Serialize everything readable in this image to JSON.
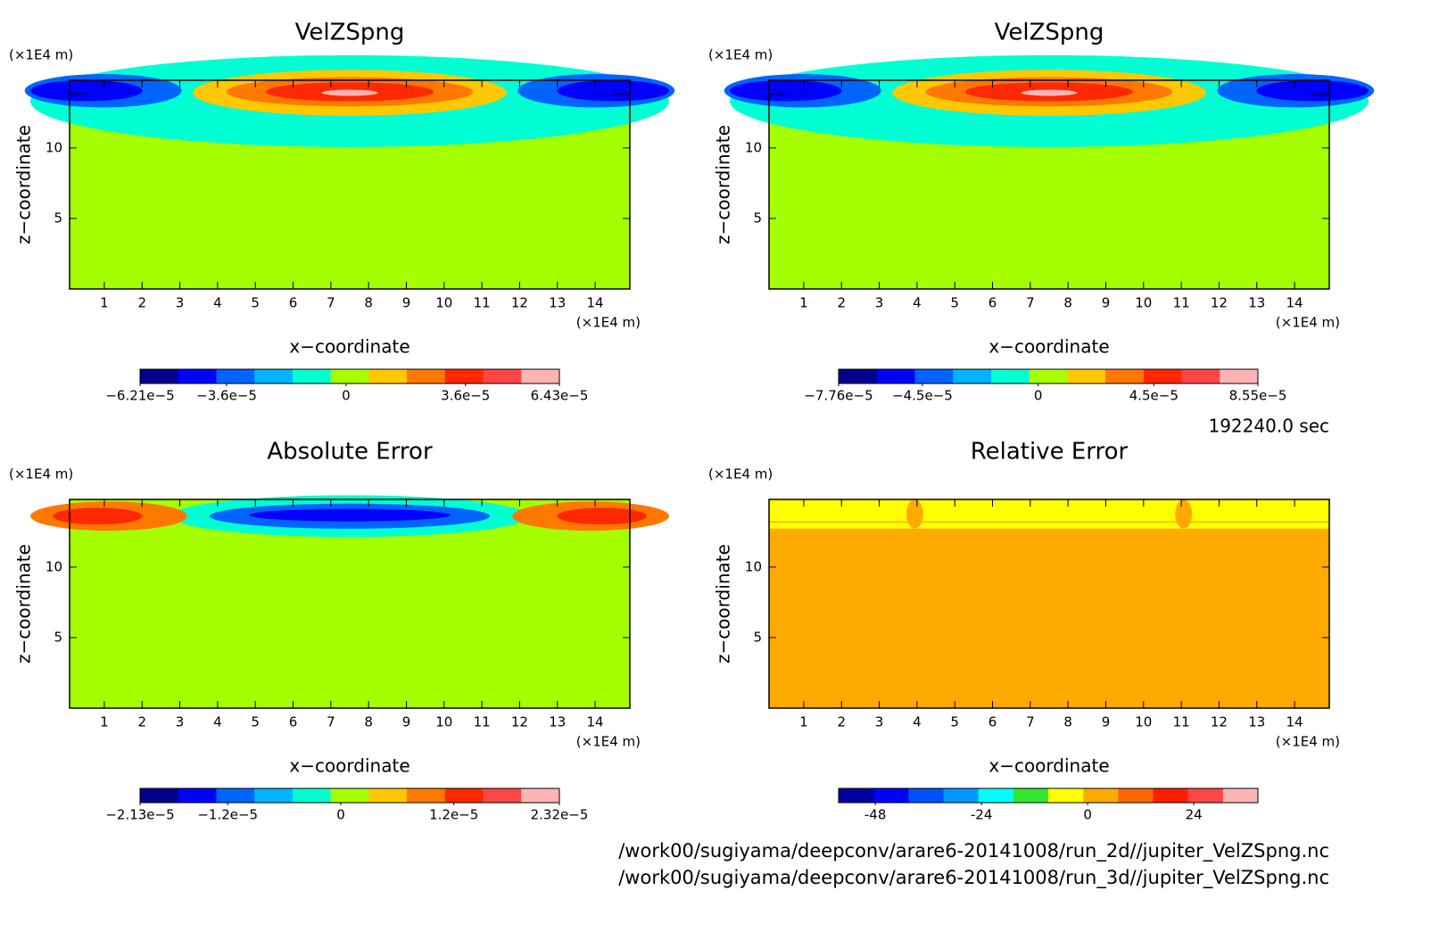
{
  "chart_data": [
    {
      "type": "contour",
      "title": "VelZSpng",
      "xlabel": "x−coordinate",
      "ylabel": "z−coordinate",
      "xunit": "(×1E4 m)",
      "yunit": "(×1E4 m)",
      "xlim": [
        0.08,
        14.92
      ],
      "xticks": [
        1,
        2,
        3,
        4,
        5,
        6,
        7,
        8,
        9,
        10,
        11,
        12,
        13,
        14
      ],
      "ylim": [
        0,
        14.8
      ],
      "yticks": [
        5,
        10
      ],
      "colorbar": {
        "lim": [
          -6.21e-05,
          6.43e-05
        ],
        "ticks": [
          {
            "value": -6.21e-05,
            "label": "−6.21e−5"
          },
          {
            "value": -3.6e-05,
            "label": "−3.6e−5"
          },
          0,
          {
            "value": 3.6e-05,
            "label": "3.6e−5"
          },
          {
            "value": 6.43e-05,
            "label": "6.43e−5"
          }
        ],
        "colors": [
          "#00008c",
          "#0000ff",
          "#0064ff",
          "#00b4ff",
          "#00ffd2",
          "#a6ff00",
          "#ffc800",
          "#ff7800",
          "#ff2800",
          "#ff4646",
          "#ffb4b4"
        ]
      }
    },
    {
      "type": "contour",
      "title": "VelZSpng",
      "xlabel": "x−coordinate",
      "ylabel": "z−coordinate",
      "xunit": "(×1E4 m)",
      "yunit": "(×1E4 m)",
      "xlim": [
        0.08,
        14.92
      ],
      "xticks": [
        1,
        2,
        3,
        4,
        5,
        6,
        7,
        8,
        9,
        10,
        11,
        12,
        13,
        14
      ],
      "ylim": [
        0,
        14.8
      ],
      "yticks": [
        5,
        10
      ],
      "colorbar": {
        "lim": [
          -7.76e-05,
          8.55e-05
        ],
        "ticks": [
          {
            "value": -7.76e-05,
            "label": "−7.76e−5"
          },
          {
            "value": -4.5e-05,
            "label": "−4.5e−5"
          },
          0,
          {
            "value": 4.5e-05,
            "label": "4.5e−5"
          },
          {
            "value": 8.55e-05,
            "label": "8.55e−5"
          }
        ],
        "colors": [
          "#00008c",
          "#0000ff",
          "#0064ff",
          "#00b4ff",
          "#00ffd2",
          "#a6ff00",
          "#ffc800",
          "#ff7800",
          "#ff2800",
          "#ff4646",
          "#ffb4b4"
        ]
      }
    },
    {
      "type": "contour",
      "title": "Absolute Error",
      "xlabel": "x−coordinate",
      "ylabel": "z−coordinate",
      "xunit": "(×1E4 m)",
      "yunit": "(×1E4 m)",
      "xlim": [
        0.08,
        14.92
      ],
      "xticks": [
        1,
        2,
        3,
        4,
        5,
        6,
        7,
        8,
        9,
        10,
        11,
        12,
        13,
        14
      ],
      "ylim": [
        0,
        14.8
      ],
      "yticks": [
        5,
        10
      ],
      "colorbar": {
        "lim": [
          -2.13e-05,
          2.32e-05
        ],
        "ticks": [
          {
            "value": -2.13e-05,
            "label": "−2.13e−5"
          },
          {
            "value": -1.2e-05,
            "label": "−1.2e−5"
          },
          0,
          {
            "value": 1.2e-05,
            "label": "1.2e−5"
          },
          {
            "value": 2.32e-05,
            "label": "2.32e−5"
          }
        ],
        "colors": [
          "#00008c",
          "#0000ff",
          "#0064ff",
          "#00b4ff",
          "#00ffd2",
          "#a6ff00",
          "#ffc800",
          "#ff7800",
          "#ff2800",
          "#ff4646",
          "#ffb4b4"
        ]
      }
    },
    {
      "type": "contour",
      "title": "Relative Error",
      "xlabel": "x−coordinate",
      "ylabel": "z−coordinate",
      "xunit": "(×1E4 m)",
      "yunit": "(×1E4 m)",
      "xlim": [
        0.08,
        14.92
      ],
      "xticks": [
        1,
        2,
        3,
        4,
        5,
        6,
        7,
        8,
        9,
        10,
        11,
        12,
        13,
        14
      ],
      "ylim": [
        0,
        14.8
      ],
      "yticks": [
        5,
        10
      ],
      "colorbar": {
        "lim": [
          -56.3,
          38.5
        ],
        "ticks": [
          -48,
          -24,
          0,
          24
        ],
        "colors": [
          "#0000a0",
          "#0000ff",
          "#0050ff",
          "#0096ff",
          "#00ffff",
          "#32e632",
          "#ffff00",
          "#ffaa00",
          "#ff6400",
          "#ff1e00",
          "#ff4646",
          "#ffb4b4"
        ]
      }
    }
  ],
  "footer": {
    "time": "192240.0 sec",
    "files": [
      "/work00/sugiyama/deepconv/arare6-20141008/run_2d//jupiter_VelZSpng.nc",
      "/work00/sugiyama/deepconv/arare6-20141008/run_3d//jupiter_VelZSpng.nc"
    ]
  }
}
